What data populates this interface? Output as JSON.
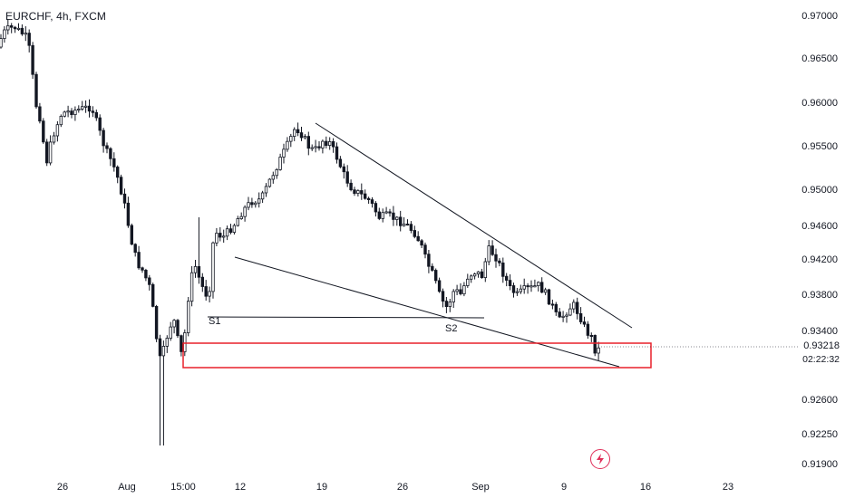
{
  "symbol": {
    "title": "EURCHF, 4h, FXCM"
  },
  "chart_data": {
    "type": "candlestick",
    "ylim": [
      0.9165,
      0.9715
    ],
    "y_ticks": [
      "0.97000",
      "0.96500",
      "0.96000",
      "0.95500",
      "0.95000",
      "0.94600",
      "0.94200",
      "0.93800",
      "0.93400",
      "0.92600",
      "0.92250",
      "0.91900"
    ],
    "x_ticks": [
      "26",
      "Aug",
      "15:00",
      "12",
      "19",
      "26",
      "Sep",
      "9",
      "16",
      "23"
    ],
    "price_label": "0.93218",
    "countdown_label": "02:22:32",
    "candle_colors": {
      "up": "#ffffff",
      "down": "#131722",
      "border": "#131722"
    },
    "annotations": {
      "labels": [
        "S1",
        "S2"
      ],
      "zone_color": "#e8202a",
      "line_color": "#131722"
    }
  },
  "buttons": {
    "lightning_icon": "lightning-icon"
  }
}
